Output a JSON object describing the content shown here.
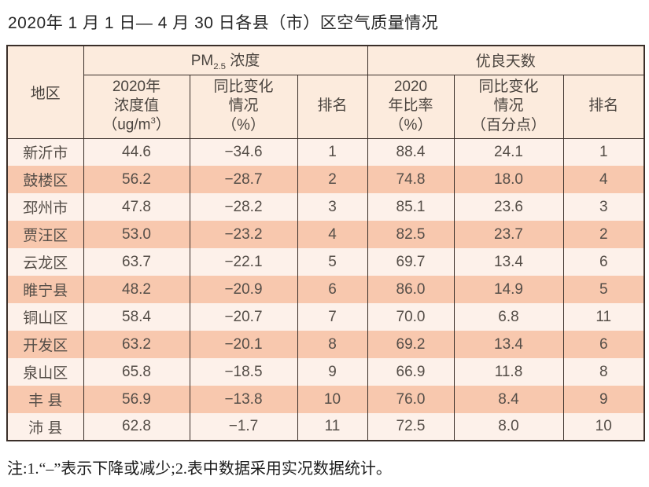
{
  "page": {
    "title": "2020年 1 月 1 日— 4 月 30 日各县（市）区空气质量情况",
    "footnote": "注:1.“–”表示下降或减少;2.表中数据采用实况数据统计。"
  },
  "colors": {
    "row_salmon": "#f8c8ae",
    "row_pale": "#fdf1ea",
    "header_bg": "#fcebdd",
    "border": "#3a2f29"
  },
  "table": {
    "region_header": "地区",
    "groups": [
      {
        "prefix": "PM",
        "sub": "2.5",
        "suffix": " 浓度"
      },
      {
        "label": "优良天数"
      }
    ],
    "columns": [
      {
        "lines": [
          "2020年",
          "浓度值"
        ],
        "unit_prefix": "（ug/m",
        "unit_sup": "3",
        "unit_suffix": "）"
      },
      {
        "lines": [
          "同比变化",
          "情况",
          "（%）"
        ]
      },
      {
        "label": "排名"
      },
      {
        "lines": [
          "2020",
          "年比率",
          "（%）"
        ]
      },
      {
        "lines": [
          "同比变化",
          "情况",
          "（百分点）"
        ]
      },
      {
        "label": "排名"
      }
    ],
    "rows": [
      {
        "cells": [
          "新沂市",
          "44.6",
          "−34.6",
          "1",
          "88.4",
          "24.1",
          "1"
        ]
      },
      {
        "cells": [
          "鼓楼区",
          "56.2",
          "−28.7",
          "2",
          "74.8",
          "18.0",
          "4"
        ]
      },
      {
        "cells": [
          "邳州市",
          "47.8",
          "−28.2",
          "3",
          "85.1",
          "23.6",
          "3"
        ]
      },
      {
        "cells": [
          "贾汪区",
          "53.0",
          "−23.2",
          "4",
          "82.5",
          "23.7",
          "2"
        ]
      },
      {
        "cells": [
          "云龙区",
          "63.7",
          "−22.1",
          "5",
          "69.7",
          "13.4",
          "6"
        ]
      },
      {
        "cells": [
          "睢宁县",
          "48.2",
          "−20.9",
          "6",
          "86.0",
          "14.9",
          "5"
        ]
      },
      {
        "cells": [
          "铜山区",
          "58.4",
          "−20.7",
          "7",
          "70.0",
          "6.8",
          "11"
        ]
      },
      {
        "cells": [
          "开发区",
          "63.2",
          "−20.1",
          "8",
          "69.2",
          "13.4",
          "6"
        ]
      },
      {
        "cells": [
          "泉山区",
          "65.8",
          "−18.5",
          "9",
          "66.9",
          "11.8",
          "8"
        ]
      },
      {
        "cells": [
          "丰 县",
          "56.9",
          "−13.8",
          "10",
          "76.0",
          "8.4",
          "9"
        ]
      },
      {
        "cells": [
          "沛 县",
          "62.8",
          "−1.7",
          "11",
          "72.5",
          "8.0",
          "10"
        ]
      }
    ]
  }
}
